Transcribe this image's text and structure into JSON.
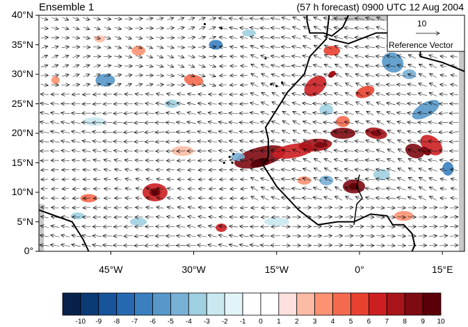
{
  "header": {
    "ensemble_label": "Ensemble 1",
    "forecast_label": "(57 h forecast) 0900 UTC 12 Aug 2004"
  },
  "map": {
    "lat_labels": [
      "40°N",
      "35°N",
      "30°N",
      "25°N",
      "20°N",
      "15°N",
      "10°N",
      "5°N",
      "0°"
    ],
    "lon_labels": [
      "45°W",
      "30°W",
      "15°W",
      "0°",
      "15°E"
    ],
    "lat_values": [
      40,
      35,
      30,
      25,
      20,
      15,
      10,
      5,
      0
    ],
    "lon_values": [
      -45,
      -30,
      -15,
      0,
      15
    ],
    "lon_range": [
      -58,
      19
    ],
    "lat_range": [
      0,
      40
    ]
  },
  "reference_vector": {
    "magnitude_label": "10",
    "title": "Reference Vector"
  },
  "colorbar": {
    "labels": [
      "-10",
      "-9",
      "-8",
      "-7",
      "-6",
      "-5",
      "-4",
      "-3",
      "-2",
      "-1",
      "0",
      "1",
      "2",
      "3",
      "4",
      "5",
      "6",
      "7",
      "8",
      "9",
      "10"
    ],
    "colors": [
      "#08214a",
      "#0b3a74",
      "#17549a",
      "#2769b0",
      "#3a7fbf",
      "#5797c9",
      "#79b0d6",
      "#a0cfe0",
      "#c9e8f0",
      "#e3f4f8",
      "#ffffff",
      "#ffffff",
      "#fde0dd",
      "#fcbba4",
      "#fc9272",
      "#f46a4f",
      "#e8412f",
      "#cc1f22",
      "#a81419",
      "#7e0a12",
      "#5a0008"
    ]
  }
}
